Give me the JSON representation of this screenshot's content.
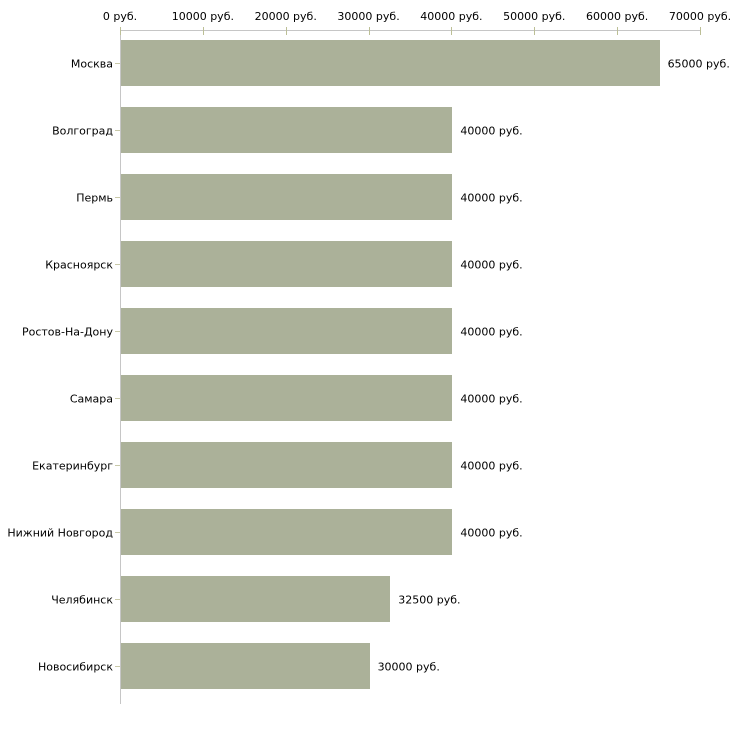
{
  "chart_data": {
    "type": "bar",
    "orientation": "horizontal",
    "title": "",
    "xlabel": "",
    "ylabel": "",
    "xlim": [
      0,
      70000
    ],
    "x_ticks": [
      0,
      10000,
      20000,
      30000,
      40000,
      50000,
      60000,
      70000
    ],
    "x_tick_labels": [
      "0 руб.",
      "10000 руб.",
      "20000 руб.",
      "30000 руб.",
      "40000 руб.",
      "50000 руб.",
      "60000 руб.",
      "70000 руб."
    ],
    "categories": [
      "Москва",
      "Волгоград",
      "Пермь",
      "Красноярск",
      "Ростов-На-Дону",
      "Самара",
      "Екатеринбург",
      "Нижний Новгород",
      "Челябинск",
      "Новосибирск"
    ],
    "values": [
      65000,
      40000,
      40000,
      40000,
      40000,
      40000,
      40000,
      40000,
      32500,
      30000
    ],
    "value_labels": [
      "65000 руб.",
      "40000 руб.",
      "40000 руб.",
      "40000 руб.",
      "40000 руб.",
      "40000 руб.",
      "40000 руб.",
      "40000 руб.",
      "32500 руб.",
      "30000 руб."
    ],
    "grid": false,
    "legend_position": "none",
    "axis_position": "top",
    "colors": {
      "bar": "#abb199",
      "axis": "#c6c6c6",
      "tick": "#bcbf96",
      "category_tick": "#c9c9a9",
      "text": "#000000",
      "background": "#ffffff"
    }
  }
}
